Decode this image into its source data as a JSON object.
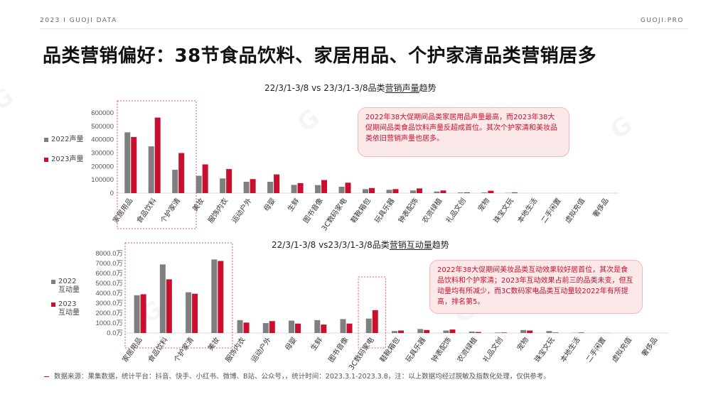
{
  "header": {
    "left": "2023 I GUOJI DATA",
    "right": "GUOJI.PRO"
  },
  "title": "品类营销偏好：38节食品饮料、家居用品、个护家清品类营销居多",
  "colors": {
    "y2022": "#7f7f7f",
    "y2023": "#c8102e",
    "highlight": "#e05560"
  },
  "charts": {
    "volume": {
      "title_pre": "22/3/1-3/8 vs 23/3/1-3/8品类",
      "title_em": "营销声量",
      "title_post": "趋势",
      "legend": [
        "2022声量",
        "2023声量"
      ],
      "note": "2022年38大促期间品类家居用品声量最高，而2023年38大促期间品类食品饮料声量反超成首位。其次个护家清和美妆品类依旧营销声量也居多。"
    },
    "interaction": {
      "title_pre": "22/3/1-3/8 vs23/3/1-3/8品类",
      "title_em": "营销互动量",
      "title_post": "趋势",
      "legend": [
        "2022互动量",
        "2023互动量"
      ],
      "note": "2022年38大促期间美妆品类互动效果较好居首位，其次是食品饮料和个护家清；2023年互动效果占前三的品类未变，但互动量均有所减少，而3C数码家电品类互动量较2022年有所提高，排名第5。"
    }
  },
  "source": "数据来源：果集数据，统计平台：抖音、快手、小红书、微博、B站、公众号，，统计时间：2023.3.1-2023.3.8，注：以上数据均经过脱敏及指数化处理，仅供参考。",
  "chart_data": [
    {
      "type": "bar",
      "title": "22/3/1-3/8 vs 23/3/1-3/8品类营销声量趋势",
      "categories": [
        "家居用品",
        "食品饮料",
        "个护家清",
        "美妆",
        "服饰内衣",
        "运动户外",
        "母婴",
        "生鲜",
        "图书音像",
        "3C数码家电",
        "鞋靴箱包",
        "玩具乐器",
        "钟表配饰",
        "农资绿植",
        "礼品文创",
        "宠物",
        "珠宝文玩",
        "本地生活",
        "二手闲置",
        "虚拟充值",
        "奢侈品"
      ],
      "series": [
        {
          "name": "2022声量",
          "values": [
            455000,
            350000,
            175000,
            130000,
            110000,
            85000,
            85000,
            62000,
            60000,
            48000,
            30000,
            25000,
            20000,
            12000,
            5000,
            5000,
            2000,
            0,
            0,
            0,
            0
          ]
        },
        {
          "name": "2023声量",
          "values": [
            420000,
            565000,
            300000,
            215000,
            180000,
            105000,
            140000,
            75000,
            98000,
            78000,
            38000,
            30000,
            35000,
            20000,
            5000,
            18000,
            5000,
            0,
            0,
            0,
            0
          ]
        }
      ],
      "yticks": [
        "0",
        "100000",
        "200000",
        "300000",
        "400000",
        "500000",
        "600000"
      ],
      "ylim": [
        0,
        600000
      ],
      "legend": "left",
      "highlight_categories": [
        0,
        1,
        2
      ]
    },
    {
      "type": "bar",
      "title": "22/3/1-3/8 vs23/3/1-3/8品类营销互动量趋势",
      "categories": [
        "家居用品",
        "食品饮料",
        "个护家清",
        "美妆",
        "服饰内衣",
        "运动户外",
        "母婴",
        "生鲜",
        "图书音像",
        "3C数码家电",
        "鞋靴箱包",
        "玩具乐器",
        "钟表配饰",
        "农资绿植",
        "礼品文创",
        "宠物",
        "珠宝文玩",
        "本地生活",
        "二手闲置",
        "虚拟充值",
        "奢侈品"
      ],
      "series": [
        {
          "name": "2022互动量",
          "values": [
            3800,
            6900,
            4100,
            7400,
            1300,
            1000,
            1250,
            1300,
            1400,
            1450,
            200,
            400,
            250,
            150,
            50,
            300,
            200,
            20,
            10,
            0,
            0
          ]
        },
        {
          "name": "2023互动量",
          "values": [
            3900,
            5400,
            3950,
            7250,
            1050,
            1200,
            950,
            850,
            950,
            2300,
            250,
            300,
            350,
            100,
            50,
            250,
            50,
            50,
            10,
            0,
            0
          ]
        }
      ],
      "yticks": [
        "0.0万",
        "1000.0万",
        "2000.0万",
        "3000.0万",
        "4000.0万",
        "5000.0万",
        "6000.0万",
        "7000.0万",
        "8000.0万"
      ],
      "ylim": [
        0,
        8000
      ],
      "unit": "万",
      "legend": "left",
      "highlight_categories": [
        0,
        1,
        2,
        3,
        9
      ]
    }
  ]
}
